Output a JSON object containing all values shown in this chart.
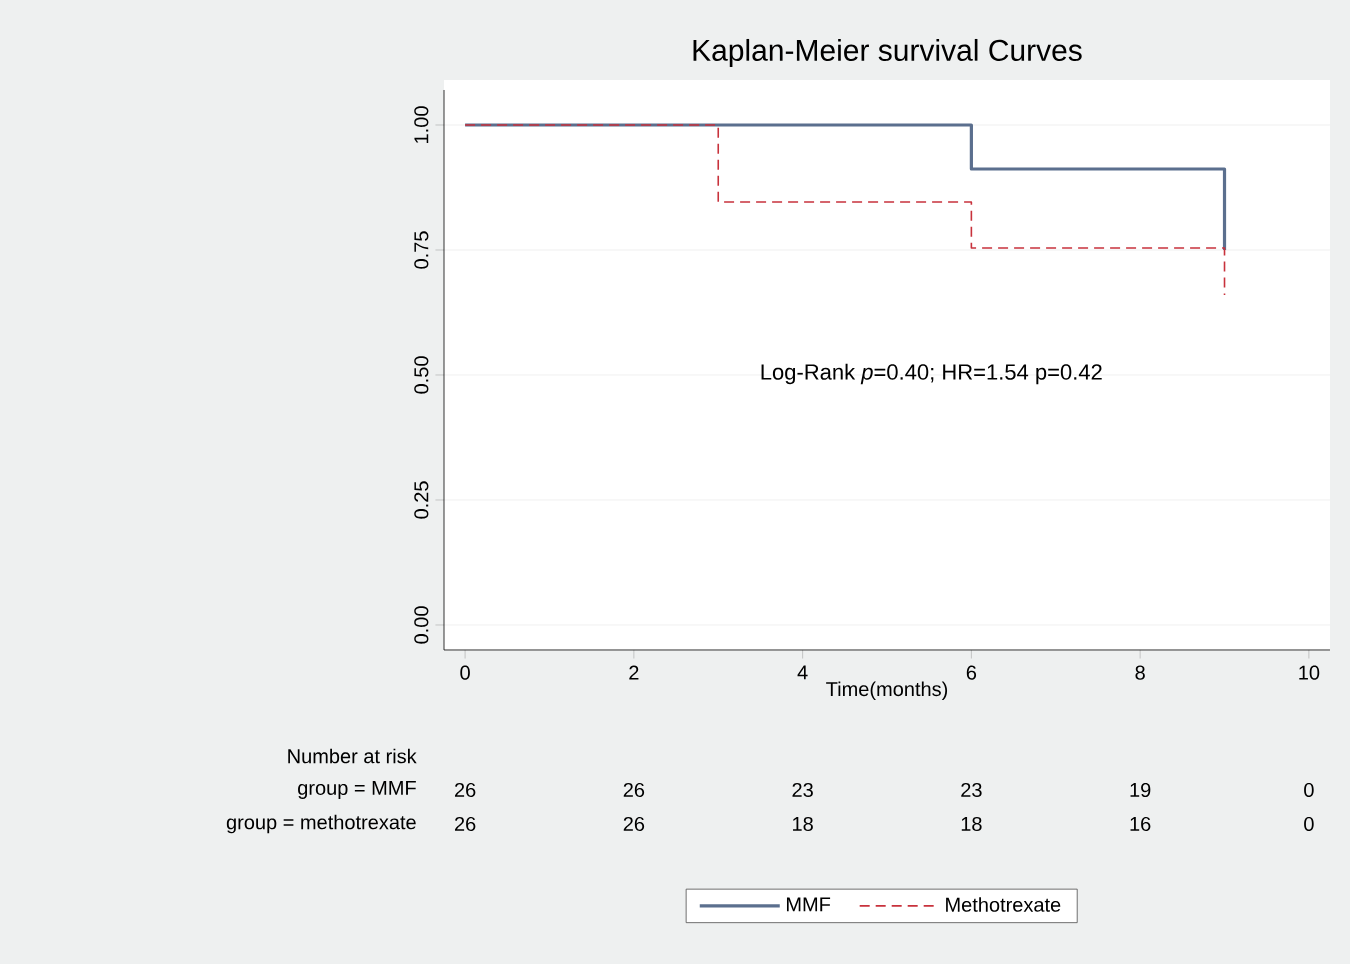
{
  "chart_data": {
    "type": "step",
    "title": "Kaplan-Meier survival Curves",
    "xlabel": "Time(months)",
    "series": [
      {
        "name": "MMF",
        "color": "#5b6f8e",
        "line_style": "solid",
        "x": [
          0,
          6,
          9
        ],
        "values": [
          1,
          0.912,
          0.75
        ]
      },
      {
        "name": "Methotrexate",
        "color": "#c8323c",
        "line_style": "dashed",
        "x": [
          0,
          3,
          6,
          9
        ],
        "values": [
          1,
          0.846,
          0.754,
          0.66
        ]
      }
    ],
    "xlim": [
      -0.25,
      10.25
    ],
    "xticks": [
      0,
      2,
      4,
      6,
      8,
      10
    ],
    "ylim": [
      -0.05,
      1.07
    ],
    "yticks": [
      {
        "value": 0,
        "label": "0.00"
      },
      {
        "value": 0.25,
        "label": "0.25"
      },
      {
        "value": 0.5,
        "label": "0.50"
      },
      {
        "value": 0.75,
        "label": "0.75"
      },
      {
        "value": 1,
        "label": "1.00"
      }
    ],
    "grid": "y",
    "legend": "bottom",
    "marker": "none",
    "annotations": [
      "Log-Rank *p*=0.40; HR=1.54  p=0.42",
      "Number at risk",
      "group = MMF",
      "26",
      "26",
      "23",
      "23",
      "19",
      "0",
      "group = methotrexate",
      "26",
      "26",
      "18",
      "18",
      "16",
      "0"
    ]
  }
}
